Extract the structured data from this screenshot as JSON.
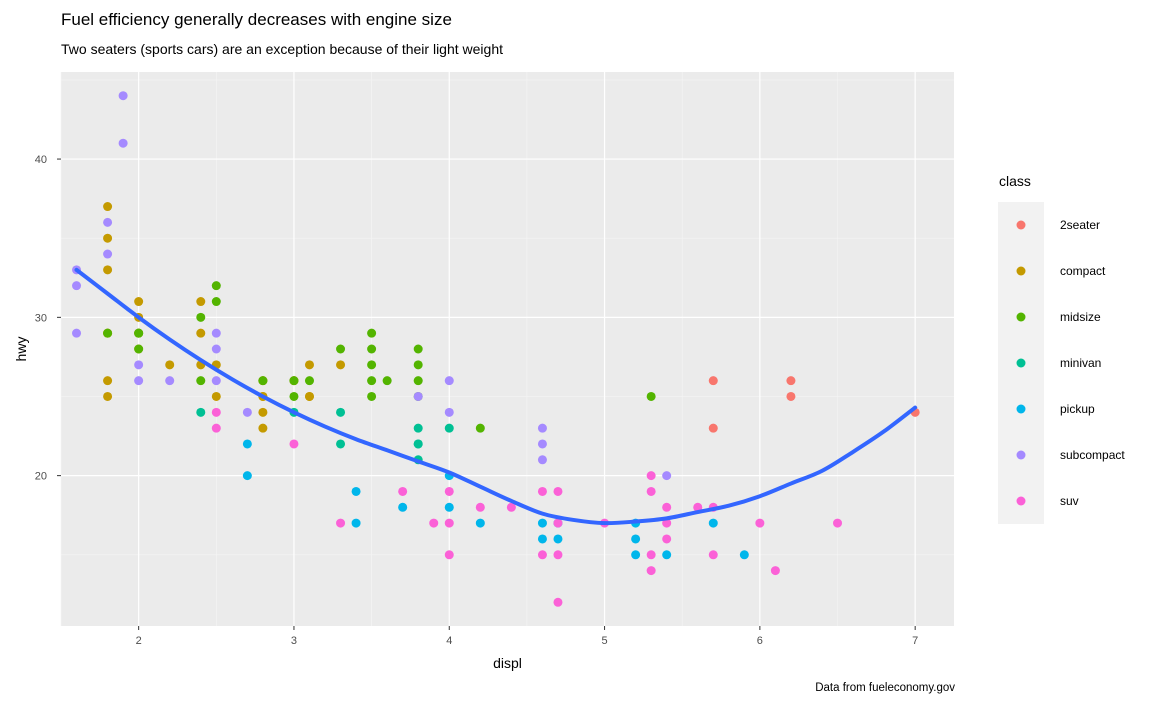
{
  "title": "Fuel efficiency generally decreases with engine size",
  "subtitle": "Two seaters (sports cars) are an exception because of their light weight",
  "caption": "Data from fueleconomy.gov",
  "chart_data": {
    "type": "scatter",
    "xlabel": "displ",
    "ylabel": "hwy",
    "xlim": [
      1.5,
      7.25
    ],
    "ylim": [
      10.5,
      45.5
    ],
    "x_ticks": [
      2,
      3,
      4,
      5,
      6,
      7
    ],
    "y_ticks": [
      20,
      30,
      40
    ],
    "grid": true,
    "legend_title": "class",
    "legend_position": "right",
    "series": [
      {
        "name": "2seater",
        "color": "#F8766D",
        "points": [
          [
            5.7,
            26
          ],
          [
            5.7,
            23
          ],
          [
            6.2,
            26
          ],
          [
            6.2,
            25
          ],
          [
            7.0,
            24
          ]
        ]
      },
      {
        "name": "compact",
        "color": "#C49A00",
        "points": [
          [
            1.8,
            29
          ],
          [
            1.8,
            29
          ],
          [
            2.0,
            31
          ],
          [
            2.0,
            30
          ],
          [
            2.8,
            26
          ],
          [
            2.8,
            26
          ],
          [
            3.1,
            27
          ],
          [
            1.8,
            26
          ],
          [
            1.8,
            25
          ],
          [
            2.0,
            28
          ],
          [
            2.0,
            29
          ],
          [
            2.8,
            25
          ],
          [
            2.8,
            25
          ],
          [
            3.1,
            25
          ],
          [
            3.1,
            25
          ],
          [
            2.4,
            31
          ],
          [
            2.4,
            29
          ],
          [
            2.4,
            27
          ],
          [
            2.5,
            27
          ],
          [
            2.5,
            25
          ],
          [
            2.2,
            27
          ],
          [
            3.0,
            26
          ],
          [
            3.3,
            27
          ],
          [
            1.8,
            33
          ],
          [
            1.8,
            35
          ],
          [
            1.8,
            37
          ],
          [
            2.0,
            29
          ],
          [
            2.8,
            24
          ],
          [
            2.8,
            23
          ],
          [
            3.0,
            26
          ]
        ]
      },
      {
        "name": "midsize",
        "color": "#53B400",
        "points": [
          [
            2.4,
            30
          ],
          [
            2.4,
            26
          ],
          [
            2.5,
            32
          ],
          [
            2.5,
            31
          ],
          [
            2.8,
            26
          ],
          [
            3.1,
            26
          ],
          [
            3.3,
            28
          ],
          [
            3.5,
            29
          ],
          [
            3.5,
            28
          ],
          [
            3.5,
            27
          ],
          [
            3.5,
            26
          ],
          [
            3.5,
            25
          ],
          [
            3.6,
            26
          ],
          [
            3.8,
            28
          ],
          [
            3.8,
            27
          ],
          [
            3.8,
            26
          ],
          [
            3.8,
            25
          ],
          [
            4.2,
            23
          ],
          [
            5.3,
            25
          ],
          [
            3.0,
            25
          ],
          [
            3.0,
            26
          ],
          [
            2.0,
            28
          ],
          [
            2.0,
            29
          ],
          [
            1.8,
            29
          ],
          [
            2.0,
            29
          ]
        ]
      },
      {
        "name": "minivan",
        "color": "#00C094",
        "points": [
          [
            2.4,
            24
          ],
          [
            3.0,
            24
          ],
          [
            3.3,
            22
          ],
          [
            3.3,
            24
          ],
          [
            3.8,
            22
          ],
          [
            3.8,
            21
          ],
          [
            3.8,
            22
          ],
          [
            4.0,
            23
          ],
          [
            3.8,
            23
          ]
        ]
      },
      {
        "name": "pickup",
        "color": "#00B6EB",
        "points": [
          [
            2.7,
            22
          ],
          [
            2.7,
            20
          ],
          [
            3.4,
            19
          ],
          [
            3.4,
            17
          ],
          [
            3.7,
            18
          ],
          [
            4.0,
            20
          ],
          [
            4.0,
            18
          ],
          [
            4.2,
            17
          ],
          [
            4.6,
            17
          ],
          [
            4.6,
            16
          ],
          [
            4.7,
            17
          ],
          [
            4.7,
            16
          ],
          [
            5.2,
            17
          ],
          [
            5.2,
            16
          ],
          [
            5.2,
            15
          ],
          [
            5.4,
            15
          ],
          [
            5.7,
            17
          ],
          [
            5.9,
            15
          ]
        ]
      },
      {
        "name": "subcompact",
        "color": "#A58AFF",
        "points": [
          [
            1.6,
            33
          ],
          [
            1.6,
            32
          ],
          [
            1.6,
            29
          ],
          [
            1.8,
            36
          ],
          [
            1.8,
            34
          ],
          [
            1.9,
            44
          ],
          [
            1.9,
            41
          ],
          [
            2.0,
            27
          ],
          [
            2.0,
            26
          ],
          [
            2.2,
            26
          ],
          [
            2.5,
            29
          ],
          [
            2.5,
            28
          ],
          [
            2.5,
            26
          ],
          [
            2.7,
            24
          ],
          [
            3.8,
            25
          ],
          [
            4.0,
            26
          ],
          [
            4.0,
            24
          ],
          [
            4.6,
            23
          ],
          [
            4.6,
            22
          ],
          [
            4.6,
            21
          ],
          [
            5.4,
            20
          ]
        ]
      },
      {
        "name": "suv",
        "color": "#FB61D7",
        "points": [
          [
            2.5,
            24
          ],
          [
            2.5,
            23
          ],
          [
            3.0,
            22
          ],
          [
            3.3,
            17
          ],
          [
            3.7,
            19
          ],
          [
            3.9,
            17
          ],
          [
            4.0,
            19
          ],
          [
            4.0,
            17
          ],
          [
            4.0,
            15
          ],
          [
            4.2,
            18
          ],
          [
            4.4,
            18
          ],
          [
            4.6,
            19
          ],
          [
            4.6,
            15
          ],
          [
            4.7,
            19
          ],
          [
            4.7,
            17
          ],
          [
            4.7,
            15
          ],
          [
            4.7,
            12
          ],
          [
            5.0,
            17
          ],
          [
            5.3,
            20
          ],
          [
            5.3,
            19
          ],
          [
            5.3,
            15
          ],
          [
            5.3,
            14
          ],
          [
            5.4,
            18
          ],
          [
            5.4,
            17
          ],
          [
            5.4,
            16
          ],
          [
            5.6,
            18
          ],
          [
            5.7,
            18
          ],
          [
            5.7,
            15
          ],
          [
            6.0,
            17
          ],
          [
            6.1,
            14
          ],
          [
            6.5,
            17
          ]
        ]
      }
    ],
    "smooth": {
      "color": "#3366FF",
      "x": [
        1.6,
        1.8,
        2.0,
        2.2,
        2.4,
        2.6,
        2.8,
        3.0,
        3.2,
        3.4,
        3.6,
        3.8,
        4.0,
        4.2,
        4.4,
        4.6,
        4.8,
        5.0,
        5.2,
        5.4,
        5.6,
        5.8,
        6.0,
        6.2,
        6.4,
        6.6,
        6.8,
        7.0
      ],
      "y": [
        33.0,
        31.5,
        30.0,
        28.6,
        27.3,
        26.1,
        25.0,
        24.0,
        23.1,
        22.3,
        21.6,
        20.9,
        20.2,
        19.3,
        18.4,
        17.6,
        17.2,
        17.0,
        17.1,
        17.3,
        17.7,
        18.1,
        18.7,
        19.5,
        20.3,
        21.5,
        22.8,
        24.3
      ]
    }
  }
}
